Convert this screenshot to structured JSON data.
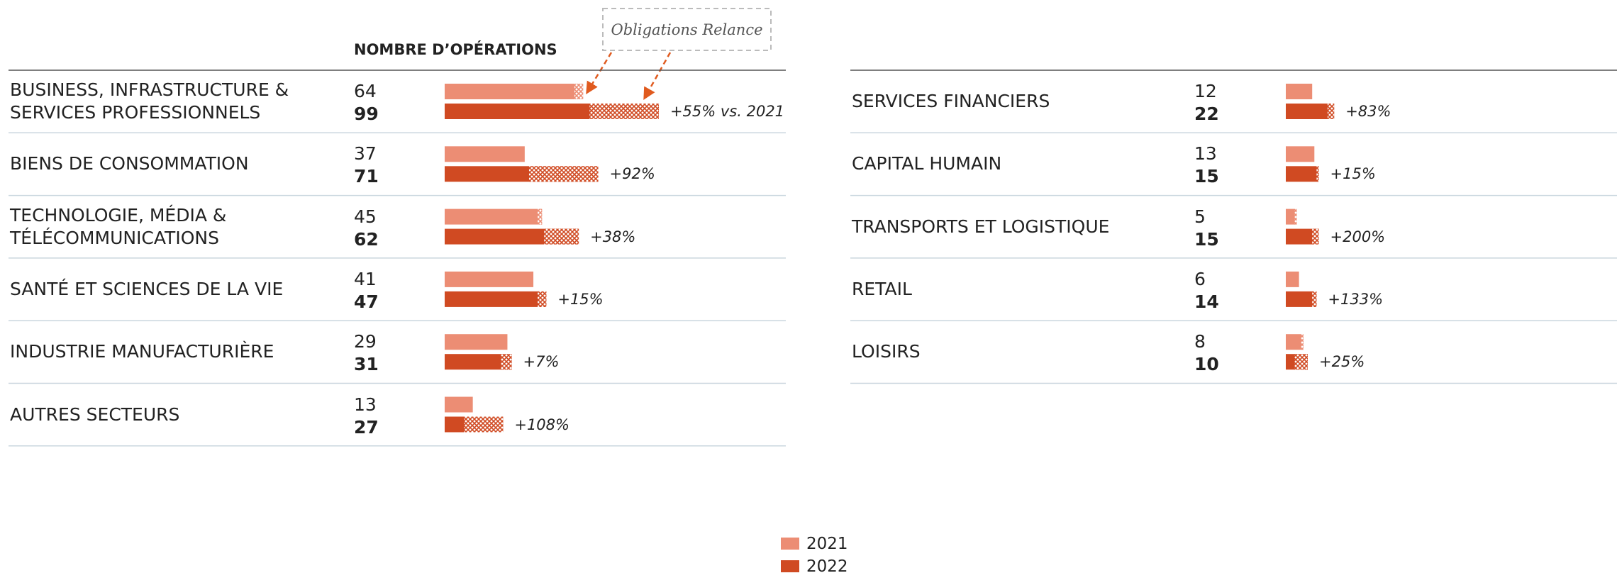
{
  "chart_data": [
    {
      "type": "bar",
      "title": "NOMBRE D’OPÉRATIONS",
      "annotation": "Obligations Relance",
      "categories": [
        "BUSINESS, INFRASTRUCTURE &\nSERVICES PROFESSIONNELS",
        "BIENS DE CONSOMMATION",
        "TECHNOLOGIE, MÉDIA &\nTÉLÉCOMMUNICATIONS",
        "SANTÉ ET SCIENCES DE LA VIE",
        "INDUSTRIE MANUFACTURIÈRE",
        "AUTRES SECTEURS"
      ],
      "series": [
        {
          "name": "2021",
          "color": "#ec8d74",
          "values": [
            64,
            37,
            45,
            41,
            29,
            13
          ],
          "relance": [
            4,
            0,
            2,
            0,
            0,
            0
          ]
        },
        {
          "name": "2022",
          "color": "#d04a22",
          "values": [
            99,
            71,
            62,
            47,
            31,
            27
          ],
          "relance": [
            32,
            32,
            16,
            4,
            5,
            18
          ]
        }
      ],
      "growth_labels": [
        "+55% vs. 2021",
        "+92%",
        "+38%",
        "+15%",
        "+7%",
        "+108%"
      ]
    },
    {
      "type": "bar",
      "categories": [
        "SERVICES FINANCIERS",
        "CAPITAL HUMAIN",
        "TRANSPORTS ET LOGISTIQUE",
        "RETAIL",
        "LOISIRS"
      ],
      "series": [
        {
          "color": "#ec8d74",
          "values": [
            12,
            13,
            5,
            6,
            8
          ],
          "relance": [
            0,
            0,
            1,
            0,
            1
          ]
        },
        {
          "color": "#d04a22",
          "values": [
            22,
            15,
            15,
            14,
            10
          ],
          "relance": [
            3,
            1,
            3,
            2,
            6
          ]
        }
      ],
      "growth_labels": [
        "+83%",
        "+15%",
        "+200%",
        "+133%",
        "+25%"
      ]
    }
  ]
}
